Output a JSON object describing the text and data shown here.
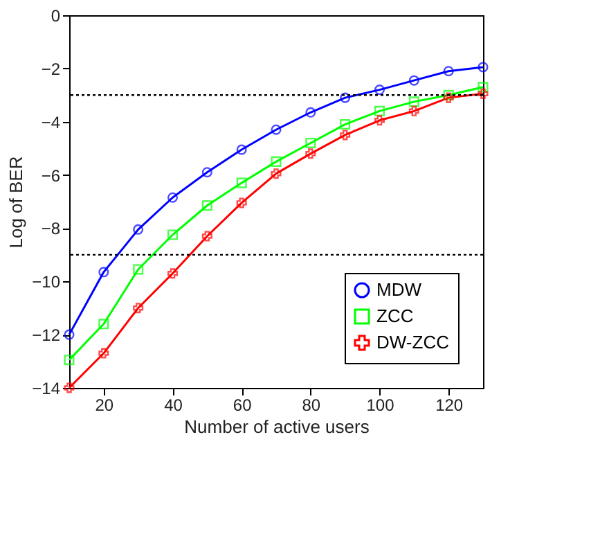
{
  "chart_data": {
    "type": "line",
    "xlabel": "Number of active users",
    "ylabel": "Log of BER",
    "x": [
      10,
      20,
      30,
      40,
      50,
      60,
      70,
      80,
      90,
      100,
      110,
      120,
      130
    ],
    "xlim": [
      10,
      130
    ],
    "xticks": [
      20,
      40,
      60,
      80,
      100,
      120
    ],
    "ylim": [
      -14,
      0
    ],
    "yticks": [
      -14,
      -12,
      -10,
      -8,
      -6,
      -4,
      -2,
      0
    ],
    "grid": false,
    "legend": "bottom right",
    "line_style": "solid",
    "series": [
      {
        "name": "MDW",
        "color": "#0000ff",
        "marker": "circle",
        "values": [
          -12,
          -9.65,
          -8.05,
          -6.85,
          -5.9,
          -5.05,
          -4.3,
          -3.65,
          -3.1,
          -2.8,
          -2.45,
          -2.1,
          -1.95
        ]
      },
      {
        "name": "ZCC",
        "color": "#00ff00",
        "marker": "square",
        "values": [
          -12.95,
          -11.6,
          -9.55,
          -8.25,
          -7.15,
          -6.3,
          -5.5,
          -4.8,
          -4.1,
          -3.6,
          -3.25,
          -3.0,
          -2.7
        ]
      },
      {
        "name": "DW-ZCC",
        "color": "#ff0000",
        "marker": "cross",
        "values": [
          -14,
          -12.7,
          -11.0,
          -9.7,
          -8.3,
          -7.05,
          -5.95,
          -5.2,
          -4.5,
          -3.95,
          -3.6,
          -3.1,
          -2.95
        ]
      }
    ],
    "ref_lines": [
      {
        "axis": "y",
        "value": -3,
        "line_style": "dotted",
        "color": "#000000"
      },
      {
        "axis": "y",
        "value": -9,
        "line_style": "dotted",
        "color": "#000000"
      }
    ]
  }
}
